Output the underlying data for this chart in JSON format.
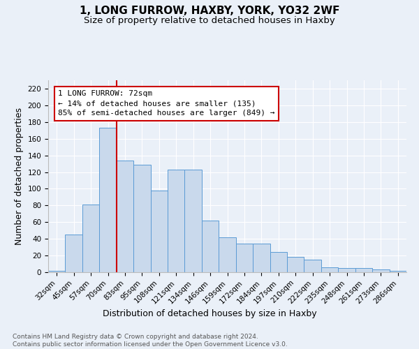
{
  "title": "1, LONG FURROW, HAXBY, YORK, YO32 2WF",
  "subtitle": "Size of property relative to detached houses in Haxby",
  "xlabel": "Distribution of detached houses by size in Haxby",
  "ylabel": "Number of detached properties",
  "categories": [
    "32sqm",
    "45sqm",
    "57sqm",
    "70sqm",
    "83sqm",
    "95sqm",
    "108sqm",
    "121sqm",
    "134sqm",
    "146sqm",
    "159sqm",
    "172sqm",
    "184sqm",
    "197sqm",
    "210sqm",
    "222sqm",
    "235sqm",
    "248sqm",
    "261sqm",
    "273sqm",
    "286sqm"
  ],
  "values": [
    2,
    45,
    81,
    173,
    134,
    129,
    98,
    123,
    123,
    62,
    42,
    34,
    34,
    24,
    18,
    15,
    6,
    5,
    5,
    3,
    2
  ],
  "bar_color": "#c9d9ec",
  "bar_edge_color": "#5b9bd5",
  "vline_x_index": 3,
  "vline_color": "#cc0000",
  "annotation_text": "1 LONG FURROW: 72sqm\n← 14% of detached houses are smaller (135)\n85% of semi-detached houses are larger (849) →",
  "annotation_box_color": "#ffffff",
  "annotation_box_edge_color": "#cc0000",
  "ylim": [
    0,
    230
  ],
  "yticks": [
    0,
    20,
    40,
    60,
    80,
    100,
    120,
    140,
    160,
    180,
    200,
    220
  ],
  "footer_text": "Contains HM Land Registry data © Crown copyright and database right 2024.\nContains public sector information licensed under the Open Government Licence v3.0.",
  "background_color": "#eaf0f8",
  "grid_color": "#ffffff",
  "title_fontsize": 11,
  "subtitle_fontsize": 9.5,
  "axis_label_fontsize": 9,
  "tick_fontsize": 7.5,
  "annotation_fontsize": 8,
  "footer_fontsize": 6.5
}
